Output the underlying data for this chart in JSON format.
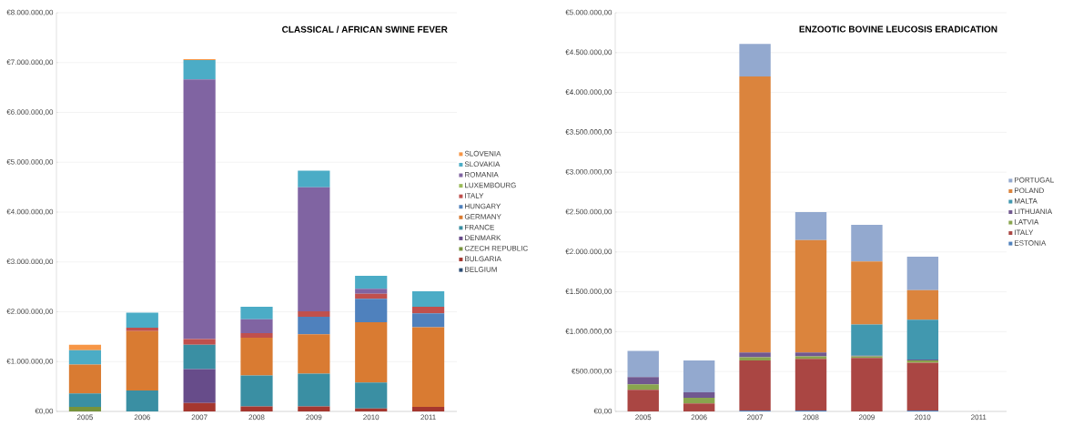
{
  "chart_data": [
    {
      "type": "bar",
      "title": "CLASSICAL / AFRICAN SWINE FEVER",
      "stacked": true,
      "grid": "y",
      "legend": "right",
      "categories": [
        "2005",
        "2006",
        "2007",
        "2008",
        "2009",
        "2010",
        "2011"
      ],
      "ylim": [
        0,
        8000000
      ],
      "yticks": [
        {
          "value": 0,
          "label": "€0,00"
        },
        {
          "value": 1000000,
          "label": "€1.000.000,00"
        },
        {
          "value": 2000000,
          "label": "€2.000.000,00"
        },
        {
          "value": 3000000,
          "label": "€3.000.000,00"
        },
        {
          "value": 4000000,
          "label": "€4.000.000,00"
        },
        {
          "value": 5000000,
          "label": "€5.000.000,00"
        },
        {
          "value": 6000000,
          "label": "€6.000.000,00"
        },
        {
          "value": 7000000,
          "label": "€7.000.000,00"
        },
        {
          "value": 8000000,
          "label": "€8.000.000,00"
        }
      ],
      "series": [
        {
          "name": "BELGIUM",
          "color": "#2c4d75",
          "values": [
            null,
            null,
            null,
            null,
            null,
            null,
            null
          ]
        },
        {
          "name": "BULGARIA",
          "color": "#a5372f",
          "values": [
            null,
            null,
            170000,
            100000,
            100000,
            60000,
            90000
          ]
        },
        {
          "name": "CZECH REPUBLIC",
          "color": "#77933c",
          "values": [
            90000,
            null,
            null,
            null,
            null,
            null,
            null
          ]
        },
        {
          "name": "DENMARK",
          "color": "#674c8a",
          "values": [
            null,
            null,
            680000,
            null,
            null,
            null,
            null
          ]
        },
        {
          "name": "FRANCE",
          "color": "#3a8fa3",
          "values": [
            270000,
            420000,
            490000,
            620000,
            660000,
            520000,
            null
          ]
        },
        {
          "name": "GERMANY",
          "color": "#d97b32",
          "values": [
            580000,
            1190000,
            null,
            760000,
            790000,
            1210000,
            1600000
          ]
        },
        {
          "name": "HUNGARY",
          "color": "#4f81bd",
          "values": [
            null,
            null,
            null,
            null,
            350000,
            470000,
            280000
          ]
        },
        {
          "name": "ITALY",
          "color": "#c0504d",
          "values": [
            null,
            70000,
            110000,
            90000,
            110000,
            100000,
            130000
          ]
        },
        {
          "name": "LUXEMBOURG",
          "color": "#9bbb59",
          "values": [
            null,
            null,
            null,
            null,
            null,
            null,
            null
          ]
        },
        {
          "name": "ROMANIA",
          "color": "#8064a2",
          "values": [
            null,
            null,
            5210000,
            280000,
            2490000,
            100000,
            null
          ]
        },
        {
          "name": "SLOVAKIA",
          "color": "#4bacc6",
          "values": [
            290000,
            300000,
            390000,
            250000,
            330000,
            260000,
            310000
          ]
        },
        {
          "name": "SLOVENIA",
          "color": "#f79646",
          "values": [
            110000,
            null,
            20000,
            null,
            null,
            null,
            null
          ]
        }
      ]
    },
    {
      "type": "bar",
      "title": "ENZOOTIC BOVINE LEUCOSIS ERADICATION",
      "stacked": true,
      "grid": "y",
      "legend": "right",
      "categories": [
        "2005",
        "2006",
        "2007",
        "2008",
        "2009",
        "2010",
        "2011"
      ],
      "ylim": [
        0,
        5000000
      ],
      "yticks": [
        {
          "value": 0,
          "label": "€0,00"
        },
        {
          "value": 500000,
          "label": "€500.000,00"
        },
        {
          "value": 1000000,
          "label": "€1.000.000,00"
        },
        {
          "value": 1500000,
          "label": "€1.500.000,00"
        },
        {
          "value": 2000000,
          "label": "€2.000.000,00"
        },
        {
          "value": 2500000,
          "label": "€2.500.000,00"
        },
        {
          "value": 3000000,
          "label": "€3.000.000,00"
        },
        {
          "value": 3500000,
          "label": "€3.500.000,00"
        },
        {
          "value": 4000000,
          "label": "€4.000.000,00"
        },
        {
          "value": 4500000,
          "label": "€4.500.000,00"
        },
        {
          "value": 5000000,
          "label": "€5.000.000,00"
        }
      ],
      "series": [
        {
          "name": "ESTONIA",
          "color": "#4f81bd",
          "values": [
            null,
            null,
            10000,
            10000,
            null,
            10000,
            null
          ]
        },
        {
          "name": "ITALY",
          "color": "#aa4643",
          "values": [
            270000,
            100000,
            630000,
            650000,
            670000,
            600000,
            null
          ]
        },
        {
          "name": "LATVIA",
          "color": "#89a54e",
          "values": [
            70000,
            70000,
            40000,
            30000,
            20000,
            30000,
            null
          ]
        },
        {
          "name": "LITHUANIA",
          "color": "#71588f",
          "values": [
            90000,
            70000,
            60000,
            50000,
            10000,
            10000,
            null
          ]
        },
        {
          "name": "MALTA",
          "color": "#4198af",
          "values": [
            null,
            null,
            null,
            null,
            390000,
            500000,
            null
          ]
        },
        {
          "name": "POLAND",
          "color": "#db843d",
          "values": [
            null,
            null,
            3460000,
            1410000,
            790000,
            370000,
            null
          ]
        },
        {
          "name": "PORTUGAL",
          "color": "#93a9cf",
          "values": [
            330000,
            400000,
            410000,
            350000,
            460000,
            420000,
            null
          ]
        }
      ]
    }
  ]
}
